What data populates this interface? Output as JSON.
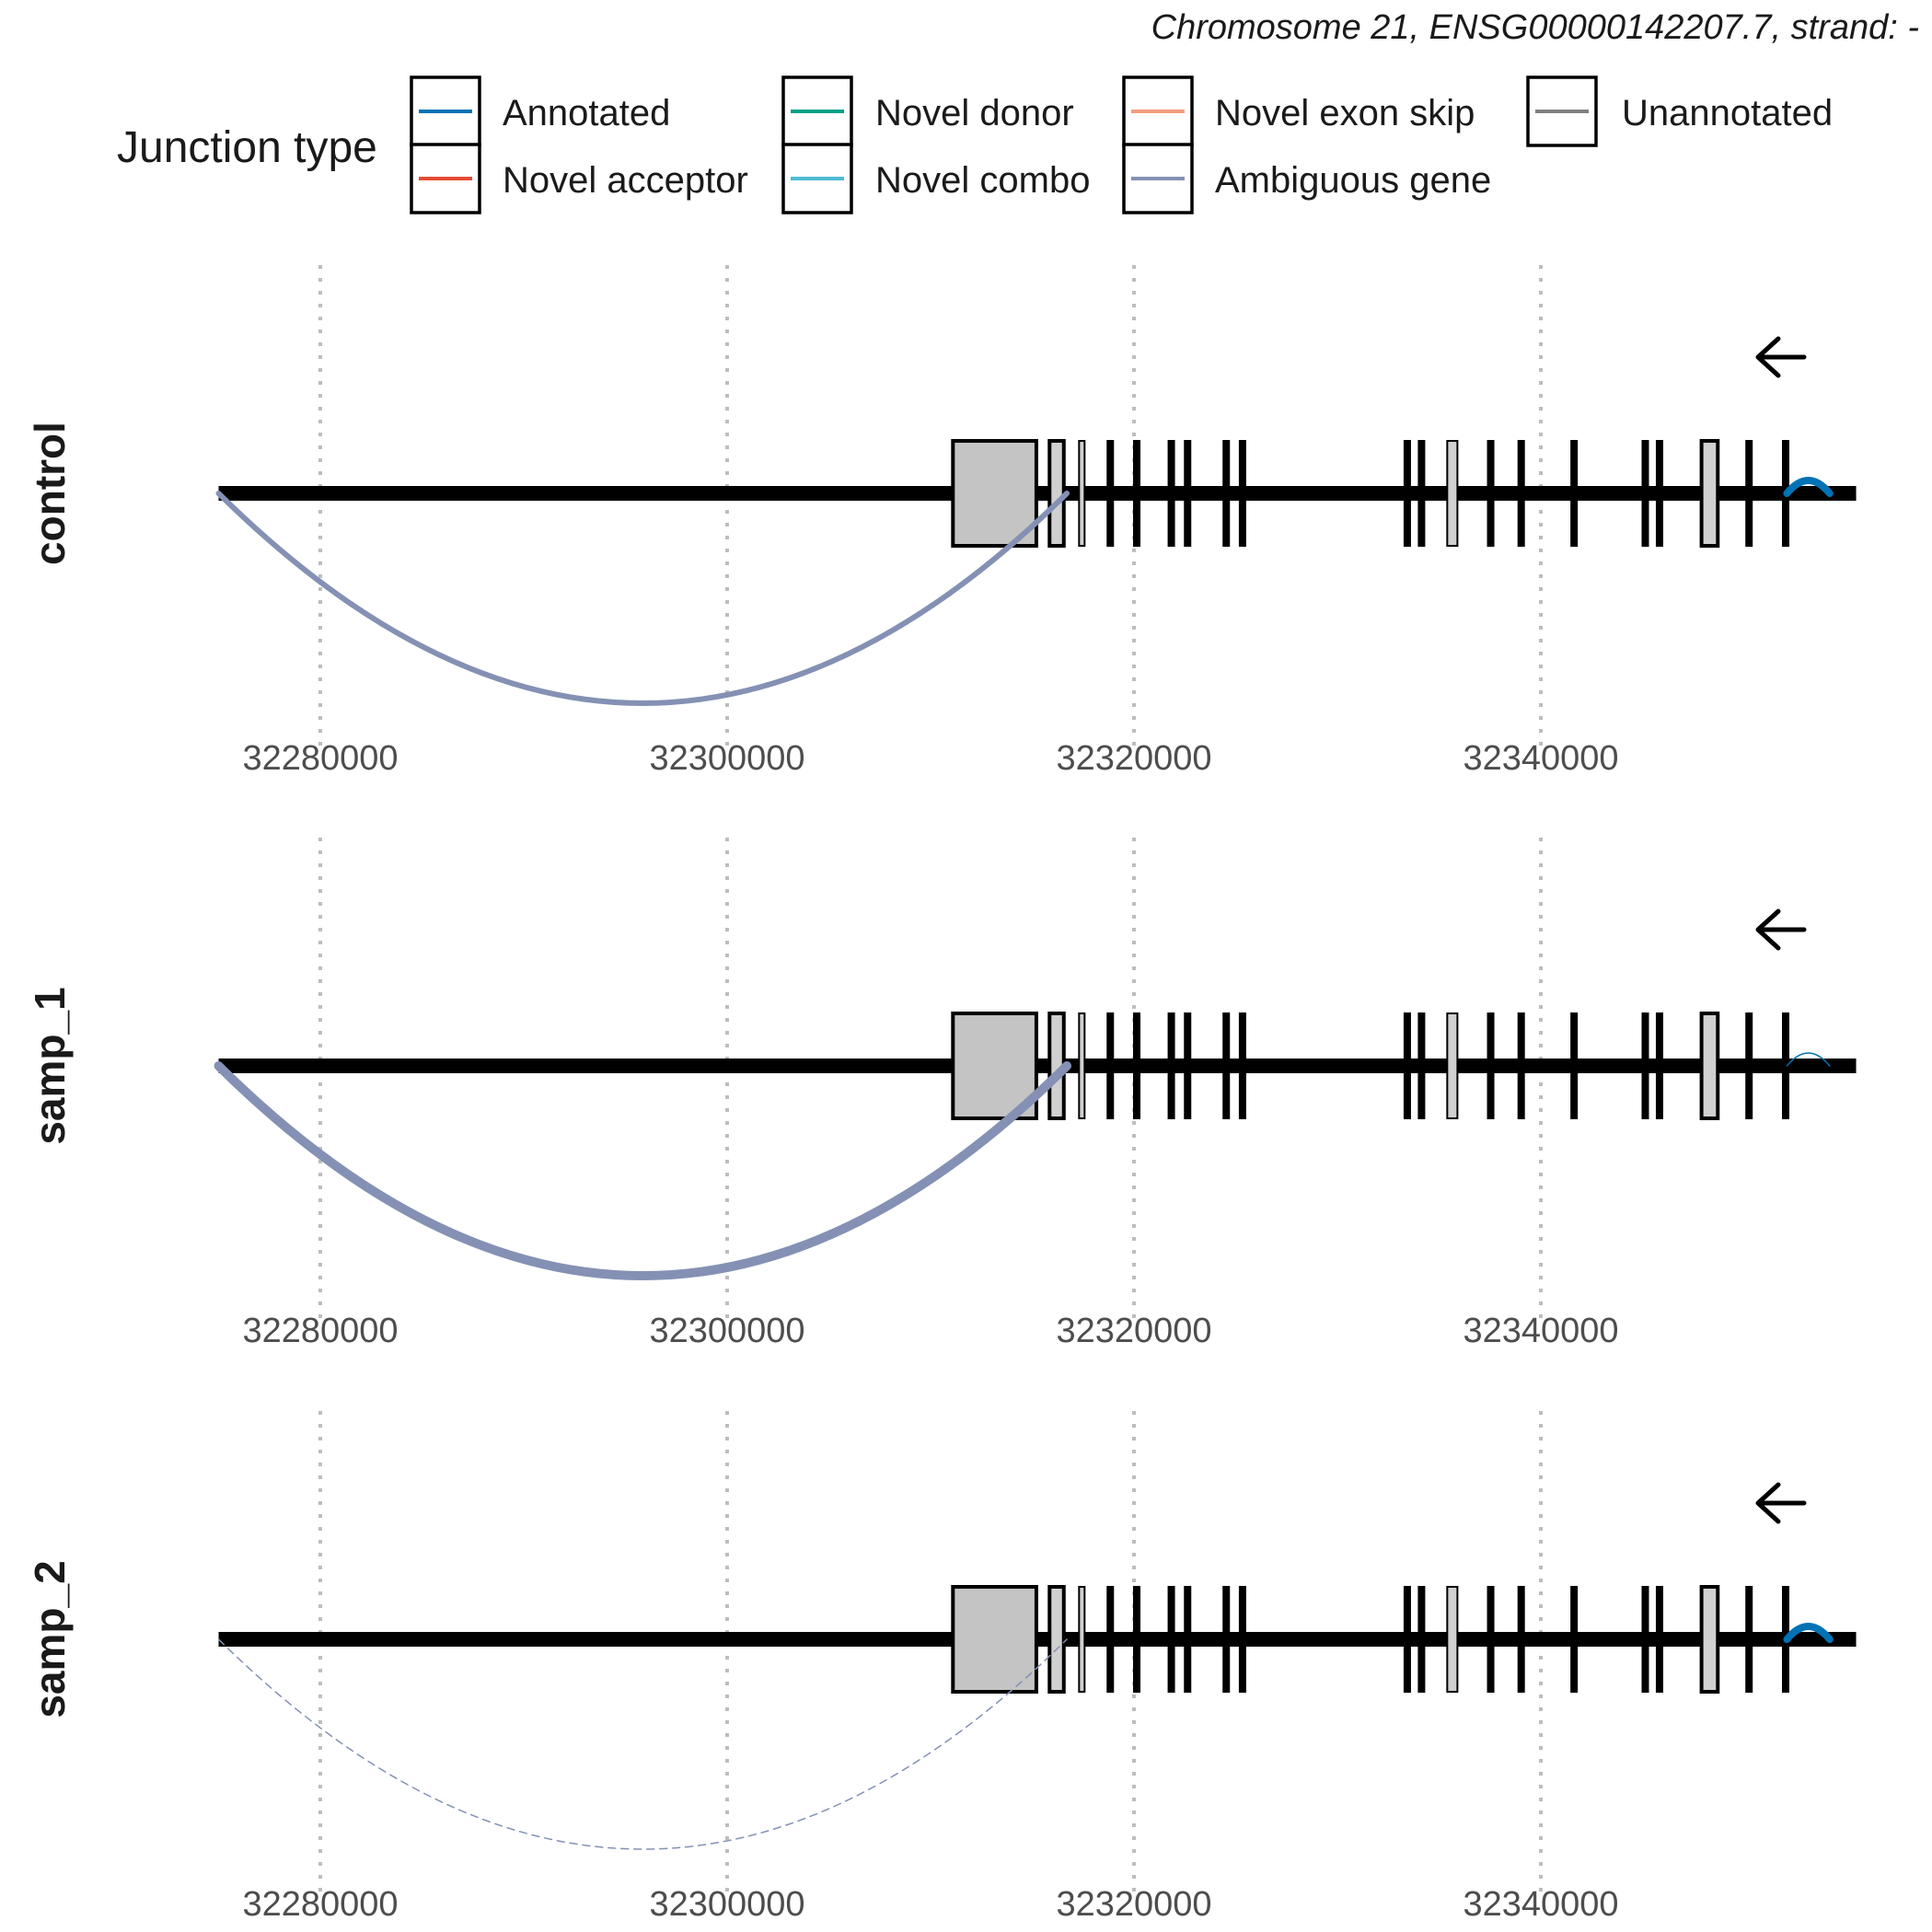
{
  "chart_data": {
    "type": "sashimi",
    "subtitle": "Chromosome 21, ENSG00000142207.7, strand: -",
    "legend": {
      "title": "Junction type",
      "items": [
        {
          "label": "Annotated",
          "color": "#0072B5"
        },
        {
          "label": "Novel acceptor",
          "color": "#E64B35"
        },
        {
          "label": "Novel donor",
          "color": "#00A087"
        },
        {
          "label": "Novel combo",
          "color": "#4DBBD5"
        },
        {
          "label": "Novel exon skip",
          "color": "#F39B7F"
        },
        {
          "label": "Ambiguous gene",
          "color": "#8491B4"
        },
        {
          "label": "Unannotated",
          "color": "#808080"
        }
      ]
    },
    "x_axis": {
      "range": [
        32270000,
        32370000
      ],
      "ticks": [
        32280000,
        32300000,
        32320000,
        32340000
      ],
      "tick_labels": [
        "32280000",
        "32300000",
        "32320000",
        "32340000"
      ]
    },
    "gene": {
      "start": 32275000,
      "end": 32355500,
      "strand": "-",
      "exons": [
        {
          "start": 32311100,
          "end": 32315200,
          "fill": "#c4c4c4"
        },
        {
          "start": 32315850,
          "end": 32316550,
          "fill": "#d0d0d0"
        },
        {
          "start": 32317300,
          "end": 32317550,
          "fill": "#d0d0d0"
        },
        {
          "start": 32318700,
          "end": 32318900,
          "fill": "#000000"
        },
        {
          "start": 32320000,
          "end": 32320200,
          "fill": "#000000"
        },
        {
          "start": 32321700,
          "end": 32321900,
          "fill": "#000000"
        },
        {
          "start": 32322500,
          "end": 32322700,
          "fill": "#000000"
        },
        {
          "start": 32324400,
          "end": 32324600,
          "fill": "#000000"
        },
        {
          "start": 32325200,
          "end": 32325400,
          "fill": "#000000"
        },
        {
          "start": 32333300,
          "end": 32333500,
          "fill": "#000000"
        },
        {
          "start": 32334000,
          "end": 32334200,
          "fill": "#000000"
        },
        {
          "start": 32335400,
          "end": 32335900,
          "fill": "#d0d0d0"
        },
        {
          "start": 32337400,
          "end": 32337600,
          "fill": "#000000"
        },
        {
          "start": 32338900,
          "end": 32339100,
          "fill": "#000000"
        },
        {
          "start": 32341500,
          "end": 32341700,
          "fill": "#000000"
        },
        {
          "start": 32345000,
          "end": 32345200,
          "fill": "#000000"
        },
        {
          "start": 32345700,
          "end": 32345900,
          "fill": "#000000"
        },
        {
          "start": 32347900,
          "end": 32348700,
          "fill": "#d0d0d0"
        },
        {
          "start": 32350100,
          "end": 32350300,
          "fill": "#000000"
        },
        {
          "start": 32351900,
          "end": 32352100,
          "fill": "#000000"
        }
      ]
    },
    "panels": [
      {
        "name": "control",
        "junctions": [
          {
            "start": 32275000,
            "end": 32316700,
            "type": "Ambiguous gene",
            "depth": 0.42,
            "direction": "below"
          },
          {
            "start": 32352100,
            "end": 32354200,
            "type": "Annotated",
            "depth": 0.045,
            "direction": "above"
          }
        ]
      },
      {
        "name": "samp_1",
        "junctions": [
          {
            "start": 32275000,
            "end": 32316700,
            "type": "Ambiguous gene",
            "depth": 0.42,
            "direction": "below"
          },
          {
            "start": 32352100,
            "end": 32354200,
            "type": "Annotated",
            "depth": 0.01,
            "direction": "above"
          }
        ]
      },
      {
        "name": "samp_2",
        "junctions": [
          {
            "start": 32275000,
            "end": 32316700,
            "type": "Ambiguous gene",
            "depth": 0.005,
            "direction": "below"
          },
          {
            "start": 32352100,
            "end": 32354200,
            "type": "Annotated",
            "depth": 0.045,
            "direction": "above"
          }
        ]
      }
    ]
  }
}
